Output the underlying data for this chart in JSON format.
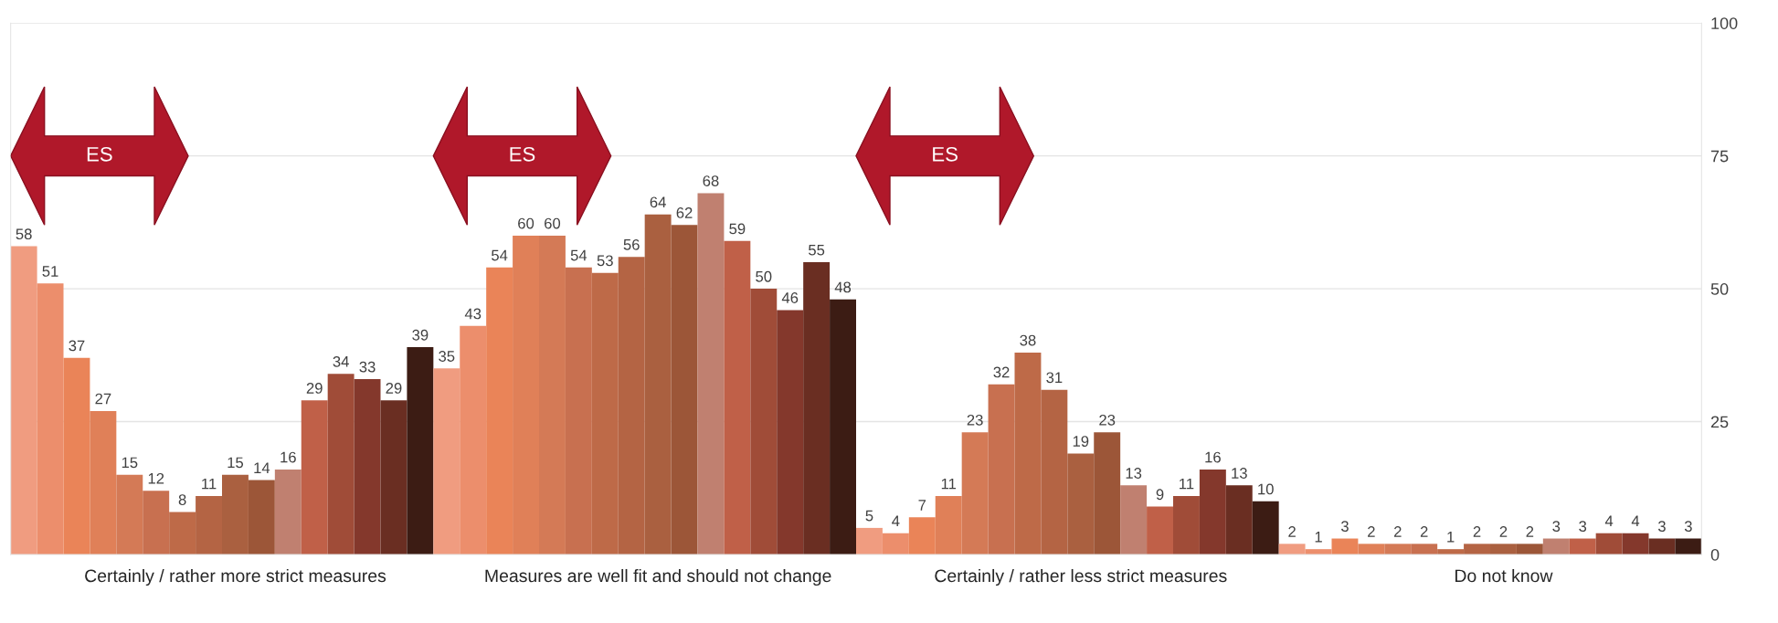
{
  "chart_data": {
    "type": "bar",
    "categories": [
      null,
      null,
      null,
      null,
      null,
      null,
      null,
      null,
      "Certainly / rather more strict measures",
      null,
      null,
      null,
      null,
      null,
      null,
      null,
      null,
      null,
      null,
      null,
      null,
      null,
      null,
      null,
      "Measures are well fit and should not change",
      null,
      null,
      null,
      null,
      null,
      null,
      null,
      null,
      null,
      null,
      null,
      null,
      null,
      null,
      null,
      "Certainly / rather less strict measures",
      null,
      null,
      null,
      null,
      null,
      null,
      null,
      null,
      null,
      null,
      null,
      null,
      null,
      null,
      null,
      "Do not know",
      null,
      null,
      null,
      null,
      null,
      null,
      null
    ],
    "values": [
      58,
      51,
      37,
      27,
      15,
      12,
      8,
      11,
      15,
      14,
      16,
      29,
      34,
      33,
      29,
      39,
      35,
      43,
      54,
      60,
      60,
      54,
      53,
      56,
      64,
      62,
      68,
      59,
      50,
      46,
      55,
      48,
      5,
      4,
      7,
      11,
      23,
      32,
      38,
      31,
      19,
      23,
      13,
      9,
      11,
      16,
      13,
      10,
      2,
      1,
      3,
      2,
      2,
      2,
      1,
      2,
      2,
      2,
      3,
      3,
      4,
      4,
      3,
      3
    ],
    "colors": [
      "#f09c80",
      "#ec8e6c",
      "#ea8458",
      "#e08058",
      "#d47a56",
      "#c87050",
      "#be6a48",
      "#b46444",
      "#aa6040",
      "#9c5638",
      "#c08070",
      "#c06048",
      "#a04c38",
      "#84382c",
      "#6a2e22",
      "#3c1c14",
      "#f09c80",
      "#ec8e6c",
      "#ea8458",
      "#e08058",
      "#d47a56",
      "#c87050",
      "#be6a48",
      "#b46444",
      "#aa6040",
      "#9c5638",
      "#c08070",
      "#c06048",
      "#a04c38",
      "#84382c",
      "#6a2e22",
      "#3c1c14",
      "#f09c80",
      "#ec8e6c",
      "#ea8458",
      "#e08058",
      "#d47a56",
      "#c87050",
      "#be6a48",
      "#b46444",
      "#aa6040",
      "#9c5638",
      "#c08070",
      "#c06048",
      "#a04c38",
      "#84382c",
      "#6a2e22",
      "#3c1c14",
      "#f09c80",
      "#ec8e6c",
      "#ea8458",
      "#e08058",
      "#d47a56",
      "#c87050",
      "#be6a48",
      "#b46444",
      "#aa6040",
      "#9c5638",
      "#c08070",
      "#c06048",
      "#a04c38",
      "#84382c",
      "#6a2e22",
      "#3c1c14"
    ],
    "ylim": [
      0,
      100
    ],
    "yticks": [
      0,
      25,
      50,
      75,
      100
    ],
    "grid": "y",
    "data_labels": true,
    "annotations": [
      "ES",
      "ES",
      "ES"
    ]
  }
}
